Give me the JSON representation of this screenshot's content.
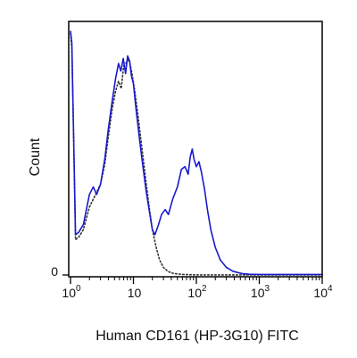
{
  "chart_data": {
    "type": "line",
    "title": "",
    "xlabel": "Human CD161 (HP-3G10) FITC",
    "ylabel": "Count",
    "x_scale": "log",
    "xlim": [
      1,
      10000
    ],
    "ylim": [
      0,
      100
    ],
    "grid": false,
    "legend": "none",
    "x_ticks": [
      {
        "value": 1,
        "base": "10",
        "exp": "0"
      },
      {
        "value": 10,
        "base": "10",
        "exp": ""
      },
      {
        "value": 100,
        "base": "10",
        "exp": "2"
      },
      {
        "value": 1000,
        "base": "10",
        "exp": "3"
      },
      {
        "value": 10000,
        "base": "10",
        "exp": "4"
      }
    ],
    "y_ticks": [
      {
        "value": 0,
        "label": "0"
      }
    ],
    "series": [
      {
        "color": "#1a1acc",
        "style": "solid",
        "x": [
          1,
          1.05,
          1.12,
          1.2,
          1.35,
          1.6,
          2,
          2.3,
          2.6,
          3,
          3.5,
          4,
          4.6,
          5.2,
          5.8,
          6.3,
          6.9,
          7.5,
          8.1,
          8.7,
          9.3,
          10,
          11,
          12.5,
          14,
          16,
          18,
          20,
          22,
          25,
          28,
          32,
          36,
          42,
          50,
          58,
          66,
          74,
          80,
          86,
          92,
          100,
          110,
          120,
          135,
          150,
          170,
          200,
          240,
          300,
          380,
          450,
          550,
          700,
          1000,
          2000,
          5000,
          10000
        ],
        "y": [
          97,
          92,
          55,
          16,
          17,
          20,
          32,
          35,
          32,
          36,
          46,
          58,
          69,
          78,
          84,
          81,
          86,
          80,
          87,
          85,
          79,
          76,
          66,
          54,
          44,
          33,
          25,
          18,
          16,
          20,
          24,
          26,
          24,
          30,
          35,
          42,
          43,
          40,
          47,
          50,
          46,
          43,
          45,
          41,
          34,
          26,
          18,
          11,
          6,
          3,
          1.5,
          1,
          0.5,
          0.3,
          0.2,
          0.2,
          0.2,
          0.2
        ]
      },
      {
        "color": "#333333",
        "style": "dotted",
        "x": [
          1,
          1.05,
          1.12,
          1.2,
          1.35,
          1.6,
          2,
          2.5,
          3,
          3.5,
          4,
          4.6,
          5.2,
          5.8,
          6.4,
          7,
          7.6,
          8.2,
          8.8,
          9.5,
          10.5,
          12,
          14,
          16,
          18,
          20,
          23,
          26,
          30,
          35,
          40,
          50,
          60,
          80,
          100,
          1000,
          10000
        ],
        "y": [
          96,
          90,
          55,
          14,
          15,
          18,
          27,
          32,
          36,
          44,
          55,
          66,
          73,
          77,
          74,
          83,
          84,
          86,
          84,
          80,
          73,
          62,
          48,
          36,
          26,
          18,
          11,
          6,
          3,
          1.5,
          0.8,
          0.4,
          0.2,
          0.1,
          0.05,
          0,
          0
        ]
      }
    ]
  }
}
